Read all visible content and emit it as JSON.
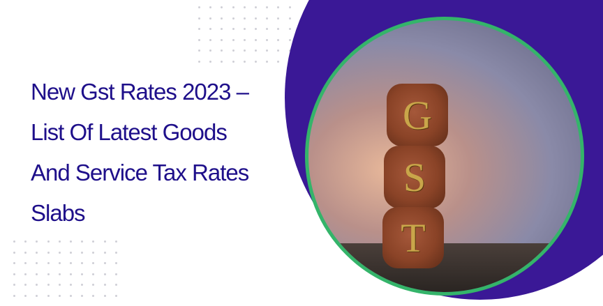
{
  "title_lines": [
    "New Gst Rates 2023 –",
    "List Of Latest Goods",
    "And Service Tax Rates",
    "Slabs"
  ],
  "image": {
    "cube_letters": [
      "G",
      "S",
      "T"
    ]
  },
  "colors": {
    "title": "#1e0f8a",
    "blob": "#3a1896",
    "ring": "#34b46a"
  }
}
